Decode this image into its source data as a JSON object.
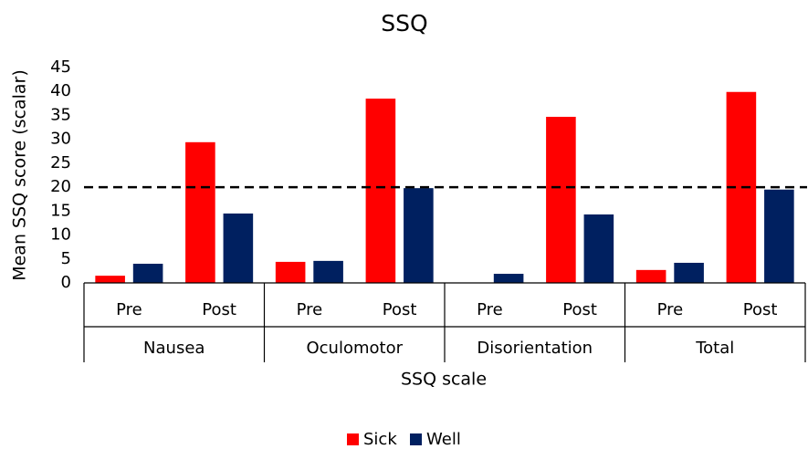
{
  "chart_data": {
    "type": "bar",
    "title": "SSQ",
    "y_label": "Mean SSQ score (scalar)",
    "x_label": "SSQ scale",
    "categories": [
      "Pre",
      "Post",
      "Pre",
      "Post",
      "Pre",
      "Post",
      "Pre",
      "Post"
    ],
    "groups": [
      "Nausea",
      "Oculomotor",
      "Disorientation",
      "Total"
    ],
    "series": [
      {
        "name": "Sick",
        "color": "#ff0000",
        "values": [
          1.5,
          29.4,
          4.4,
          38.5,
          0,
          34.7,
          2.7,
          39.9
        ]
      },
      {
        "name": "Well",
        "color": "#002060",
        "values": [
          4.0,
          14.5,
          4.6,
          19.8,
          1.9,
          14.3,
          4.2,
          19.5
        ]
      }
    ],
    "reference_line": 20,
    "ylim": [
      0,
      45
    ],
    "yticks": [
      0,
      5,
      10,
      15,
      20,
      25,
      30,
      35,
      40,
      45
    ],
    "grid": false,
    "legend": "bottom"
  }
}
